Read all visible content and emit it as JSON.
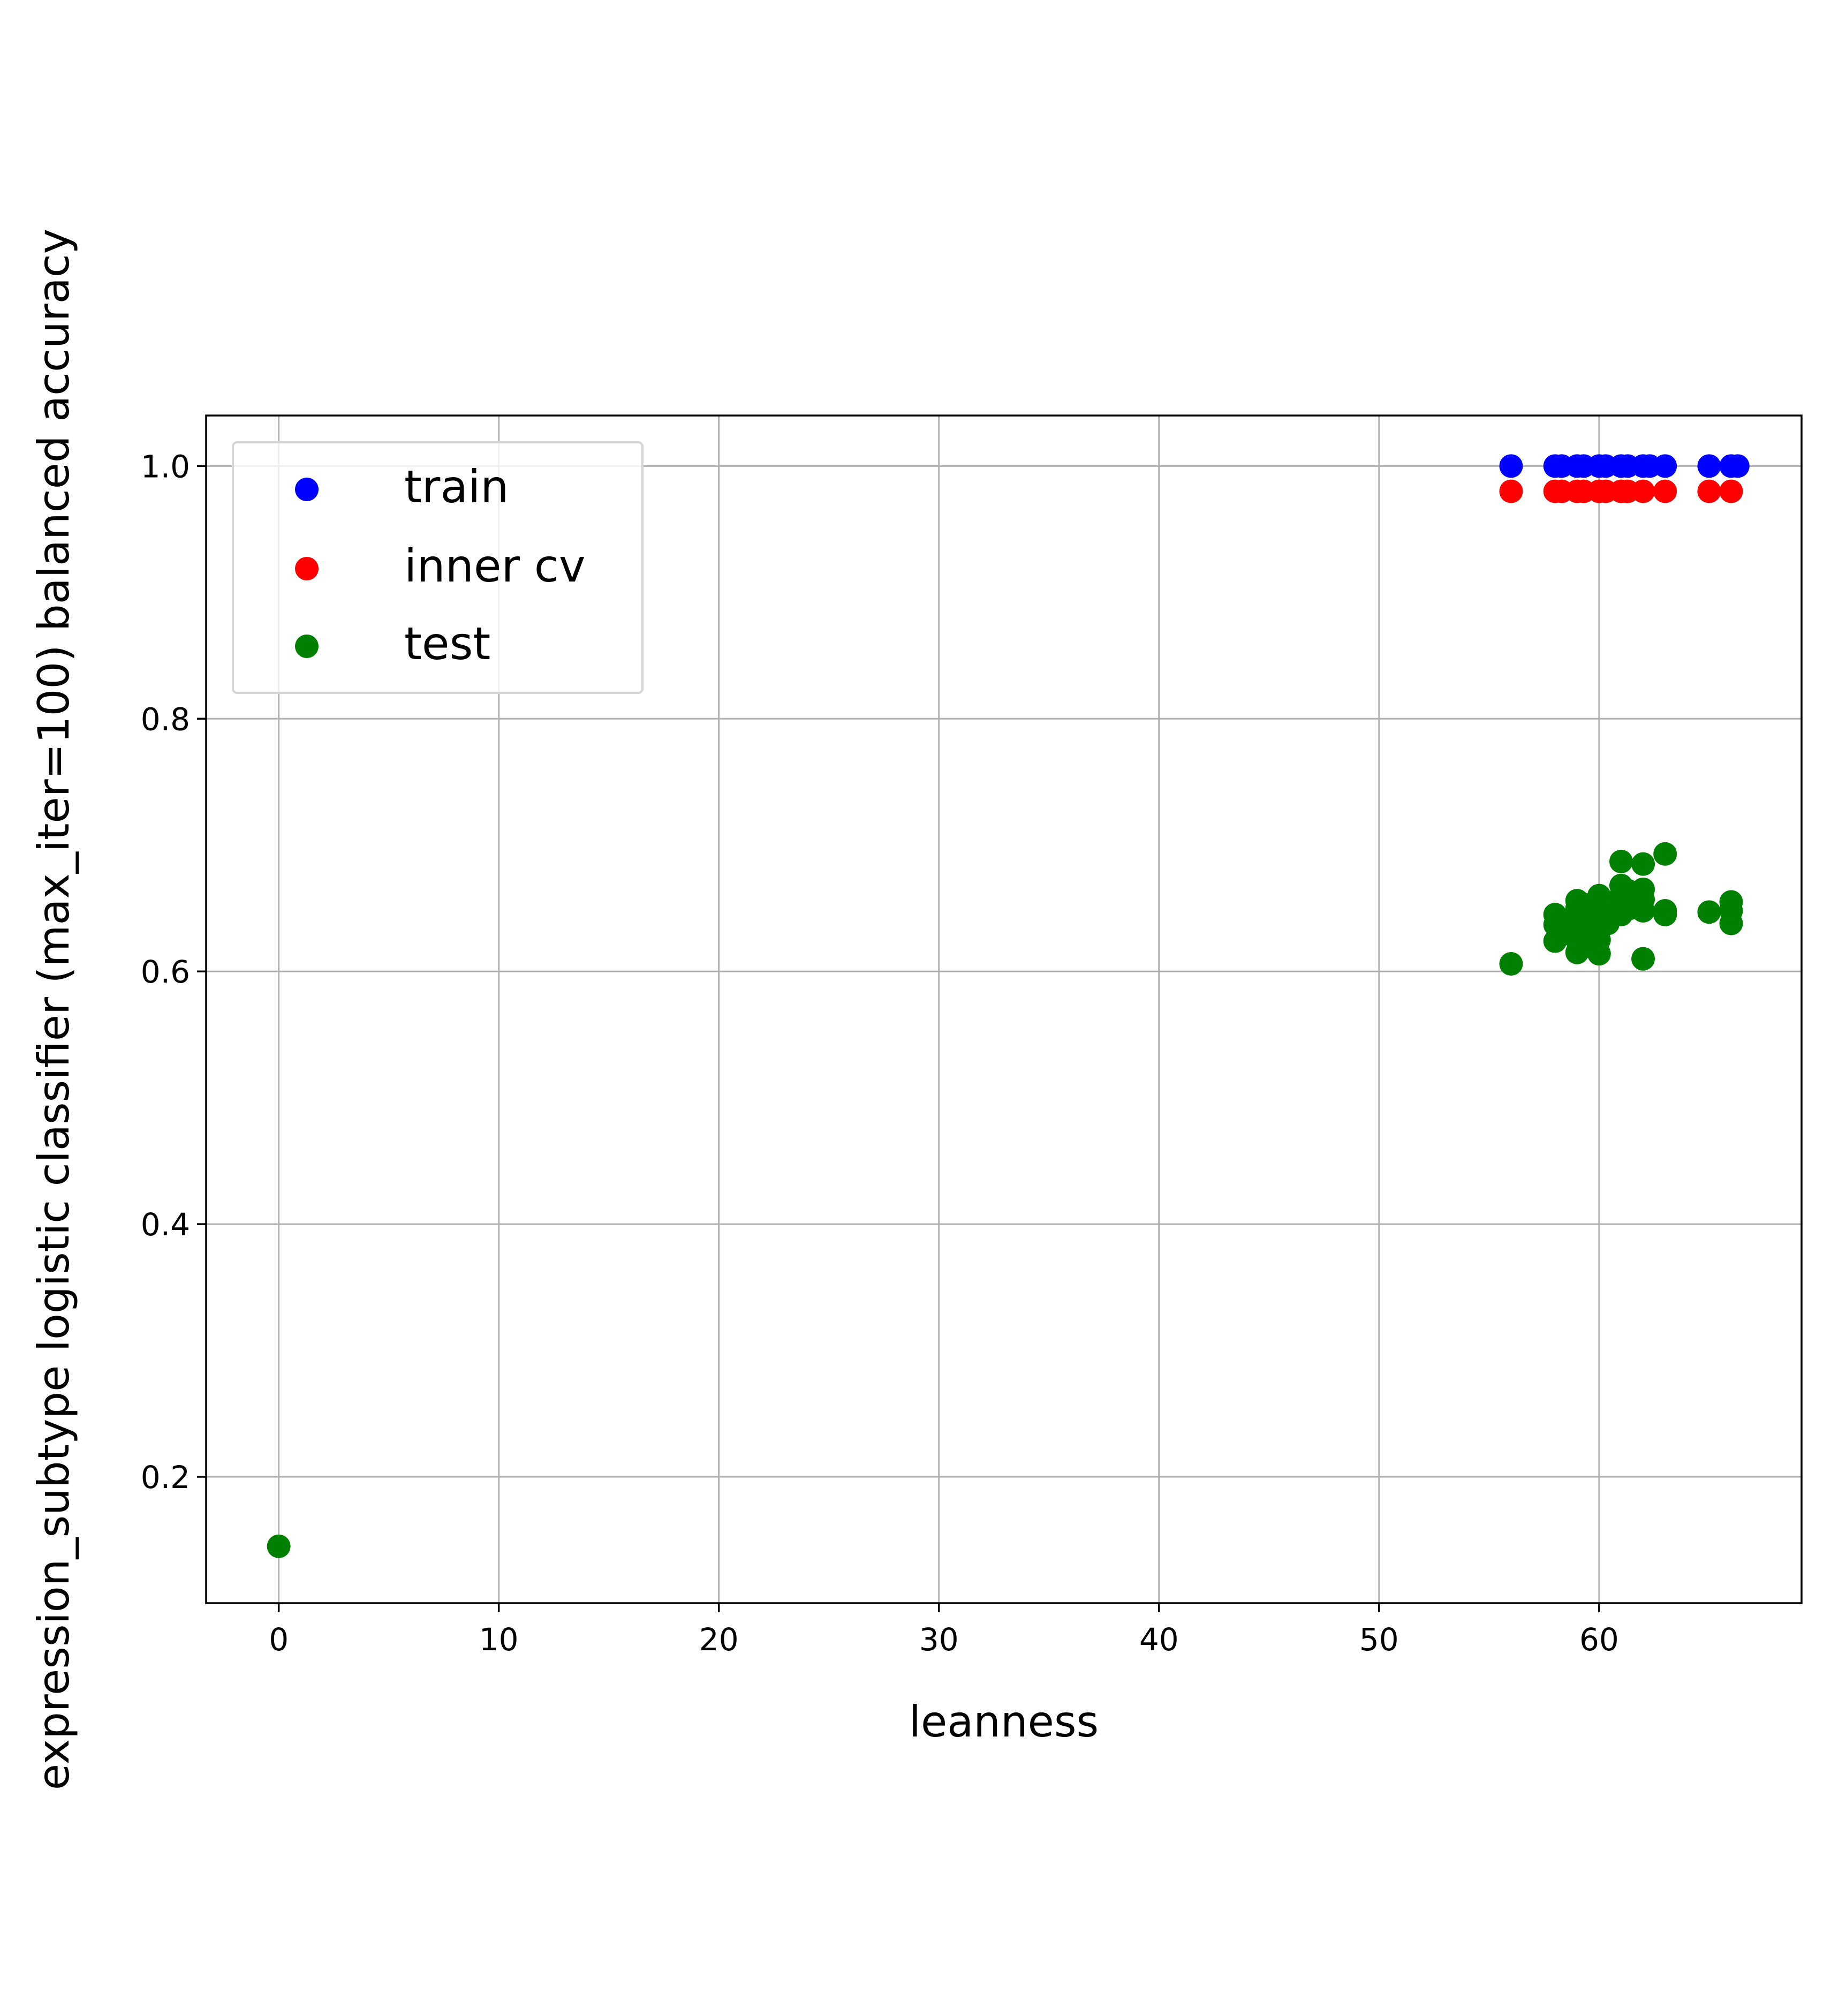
{
  "chart_data": {
    "type": "scatter",
    "xlabel": "leanness",
    "ylabel": "expression_subtype logistic classifier (max_iter=100) balanced accuracy",
    "xlim": [
      -3.3,
      69.2
    ],
    "ylim": [
      0.1,
      1.04
    ],
    "x_ticks": [
      0,
      10,
      20,
      30,
      40,
      50,
      60
    ],
    "y_ticks": [
      0.2,
      0.4,
      0.6,
      0.8,
      1.0
    ],
    "x_tick_labels": [
      "0",
      "10",
      "20",
      "30",
      "40",
      "50",
      "60"
    ],
    "y_tick_labels": [
      "0.2",
      "0.4",
      "0.6",
      "0.8",
      "1.0"
    ],
    "grid": true,
    "legend_position": "top-left",
    "series": [
      {
        "name": "train",
        "color": "#0000ff",
        "points": [
          [
            56,
            1.0
          ],
          [
            58,
            1.0
          ],
          [
            58.3,
            1.0
          ],
          [
            59,
            1.0
          ],
          [
            59.3,
            1.0
          ],
          [
            60,
            1.0
          ],
          [
            60.3,
            1.0
          ],
          [
            61,
            1.0
          ],
          [
            61.3,
            1.0
          ],
          [
            62,
            1.0
          ],
          [
            62.3,
            1.0
          ],
          [
            63,
            1.0
          ],
          [
            65,
            1.0
          ],
          [
            66,
            1.0
          ],
          [
            66.3,
            1.0
          ]
        ]
      },
      {
        "name": "inner cv",
        "color": "#ff0000",
        "points": [
          [
            56,
            0.98
          ],
          [
            58,
            0.98
          ],
          [
            58.3,
            0.98
          ],
          [
            59,
            0.98
          ],
          [
            59.3,
            0.98
          ],
          [
            60,
            0.98
          ],
          [
            60.3,
            0.98
          ],
          [
            61,
            0.98
          ],
          [
            61.3,
            0.98
          ],
          [
            62,
            0.98
          ],
          [
            63,
            0.98
          ],
          [
            65,
            0.98
          ],
          [
            66,
            0.98
          ]
        ]
      },
      {
        "name": "test",
        "color": "#008000",
        "points": [
          [
            0,
            0.145
          ],
          [
            56,
            0.606
          ],
          [
            58,
            0.645
          ],
          [
            58,
            0.637
          ],
          [
            58,
            0.624
          ],
          [
            58.3,
            0.64
          ],
          [
            58.4,
            0.63
          ],
          [
            59,
            0.656
          ],
          [
            59,
            0.65
          ],
          [
            59,
            0.642
          ],
          [
            59,
            0.633
          ],
          [
            59,
            0.625
          ],
          [
            59,
            0.615
          ],
          [
            59.3,
            0.653
          ],
          [
            59.4,
            0.636
          ],
          [
            59.5,
            0.62
          ],
          [
            60,
            0.66
          ],
          [
            60,
            0.652
          ],
          [
            60,
            0.645
          ],
          [
            60,
            0.635
          ],
          [
            60,
            0.625
          ],
          [
            60,
            0.614
          ],
          [
            60.3,
            0.648
          ],
          [
            60.4,
            0.638
          ],
          [
            61,
            0.687
          ],
          [
            61,
            0.668
          ],
          [
            61,
            0.66
          ],
          [
            61,
            0.652
          ],
          [
            61,
            0.645
          ],
          [
            61.3,
            0.664
          ],
          [
            61.4,
            0.65
          ],
          [
            62,
            0.685
          ],
          [
            62,
            0.665
          ],
          [
            62,
            0.657
          ],
          [
            62,
            0.648
          ],
          [
            62,
            0.61
          ],
          [
            63,
            0.693
          ],
          [
            63,
            0.648
          ],
          [
            63,
            0.645
          ],
          [
            65,
            0.647
          ],
          [
            66,
            0.655
          ],
          [
            66,
            0.648
          ],
          [
            66,
            0.638
          ]
        ]
      }
    ]
  }
}
